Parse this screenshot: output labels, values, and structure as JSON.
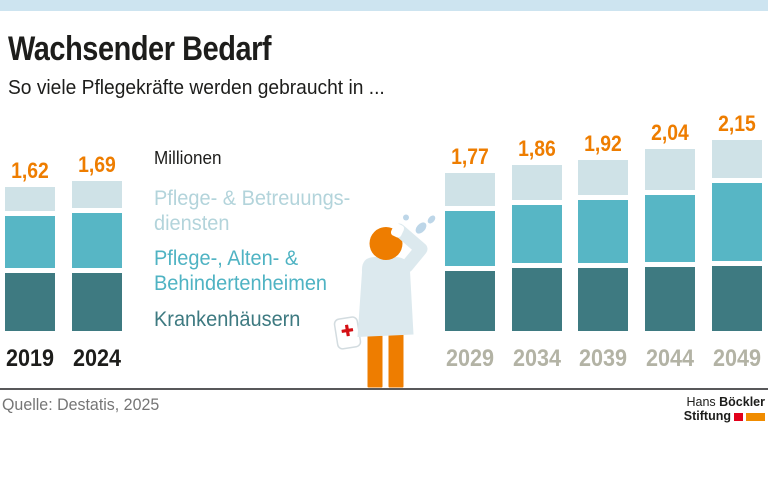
{
  "header": {
    "title": "Wachsender Bedarf",
    "subtitle": "So viele Pflegekräfte werden gebraucht in ..."
  },
  "legend": {
    "unit_label": "Millionen",
    "items": [
      {
        "lines": [
          "Pflege- & Betreuungs-",
          "diensten"
        ],
        "color": "#b3d4db"
      },
      {
        "lines": [
          "Pflege-, Alten- &",
          "Behindertenheimen"
        ],
        "color": "#4fb3c3"
      },
      {
        "lines": [
          "Krankenhäusern"
        ],
        "color": "#3e7a81"
      }
    ]
  },
  "chart_data": {
    "type": "bar",
    "stacked": true,
    "unit": "Millionen",
    "categories": [
      {
        "year": "2019",
        "total": 1.62,
        "total_label": "1,62",
        "era": "past"
      },
      {
        "year": "2024",
        "total": 1.69,
        "total_label": "1,69",
        "era": "past"
      },
      {
        "year": "2029",
        "total": 1.77,
        "total_label": "1,77",
        "era": "projection"
      },
      {
        "year": "2034",
        "total": 1.86,
        "total_label": "1,86",
        "era": "projection"
      },
      {
        "year": "2039",
        "total": 1.92,
        "total_label": "1,92",
        "era": "projection"
      },
      {
        "year": "2044",
        "total": 2.04,
        "total_label": "2,04",
        "era": "projection"
      },
      {
        "year": "2049",
        "total": 2.15,
        "total_label": "2,15",
        "era": "projection"
      }
    ],
    "series": [
      {
        "name": "Pflege- & Betreuungsdiensten",
        "color": "#cfe2e7",
        "values": [
          0.29,
          0.33,
          0.39,
          0.41,
          0.42,
          0.48,
          0.46
        ]
      },
      {
        "name": "Pflege-, Alten- & Behindertenheimen",
        "color": "#57b6c5",
        "values": [
          0.63,
          0.66,
          0.66,
          0.7,
          0.75,
          0.8,
          0.92
        ]
      },
      {
        "name": "Krankenhäusern",
        "color": "#3e7a81",
        "values": [
          0.7,
          0.7,
          0.72,
          0.75,
          0.75,
          0.76,
          0.77
        ]
      }
    ],
    "value_label_color": "#ee7d00",
    "past_year_color": "#1d1d1b",
    "projection_year_color": "#b3b3a5",
    "legend_position": "center-left",
    "grid": false
  },
  "figure": {
    "description": "sweating caregiver with medical bag",
    "head_color": "#ee7d00",
    "coat_color": "#dce9ee",
    "legs_color": "#ee7d00",
    "sweat_color": "#bdd6e8",
    "cross_color": "#d40f14"
  },
  "footer": {
    "source": "Quelle: Destatis, 2025",
    "logo": {
      "name_regular": "Hans",
      "name_bold": "Böckler",
      "line2_bold": "Stiftung"
    }
  },
  "palette": {
    "accent_orange": "#ee7d00",
    "banner_blue": "#cde4f0",
    "rule_grey": "#58585a",
    "logo_red": "#e2001a",
    "logo_orange": "#f08c00"
  }
}
